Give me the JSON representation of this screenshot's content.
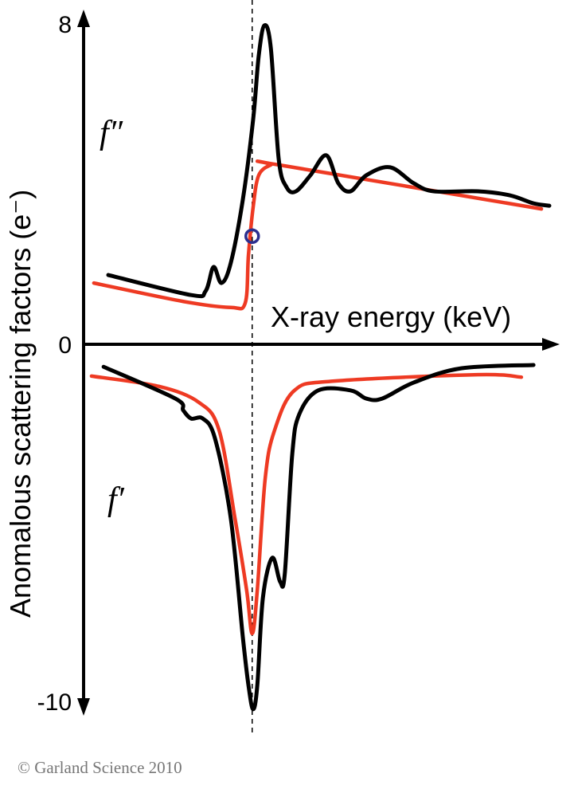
{
  "chart_data": {
    "type": "line",
    "title": "",
    "xlabel": "X-ray energy (keV)",
    "ylabel": "Anomalous scattering factors (e⁻)",
    "y_tick_labels": [
      "8",
      "0",
      "-10"
    ],
    "y_ticks": [
      8,
      0,
      -10
    ],
    "xlim": [
      0,
      100
    ],
    "ylim": [
      -10,
      8
    ],
    "grid": false,
    "absorption_edge_x": 36.2,
    "marker": {
      "x": 36.2,
      "y": 2.7,
      "color": "#2b2f8f"
    },
    "curve_labels": {
      "f_double_prime": "f″",
      "f_prime": "f′"
    },
    "colors": {
      "measured": "#000000",
      "theoretical": "#ee3a23"
    },
    "series": [
      {
        "key": "f2_measured",
        "color": "#000000",
        "points": [
          [
            5.3,
            1.73
          ],
          [
            23.1,
            1.23
          ],
          [
            26.2,
            1.33
          ],
          [
            27.9,
            1.93
          ],
          [
            29.6,
            1.53
          ],
          [
            31.6,
            2.03
          ],
          [
            34.2,
            3.62
          ],
          [
            36.4,
            5.61
          ],
          [
            37.6,
            7.2
          ],
          [
            38.8,
            7.96
          ],
          [
            40.2,
            7.4
          ],
          [
            41.9,
            4.62
          ],
          [
            43.6,
            3.92
          ],
          [
            45.6,
            3.82
          ],
          [
            48.7,
            4.22
          ],
          [
            52.1,
            4.72
          ],
          [
            54.7,
            4.02
          ],
          [
            57.3,
            3.82
          ],
          [
            60.7,
            4.22
          ],
          [
            65.8,
            4.42
          ],
          [
            70.9,
            4.02
          ],
          [
            75.2,
            3.82
          ],
          [
            84.6,
            3.82
          ],
          [
            91.5,
            3.72
          ],
          [
            96.6,
            3.52
          ],
          [
            100,
            3.46
          ]
        ]
      },
      {
        "key": "f2_theoretical",
        "color": "#ee3a23",
        "points": [
          [
            2.2,
            1.53
          ],
          [
            21.4,
            1.07
          ],
          [
            31.6,
            0.92
          ],
          [
            34.7,
            1.03
          ],
          [
            35.4,
            2.23
          ],
          [
            36.4,
            3.42
          ],
          [
            37.6,
            4.22
          ],
          [
            40.2,
            4.48
          ],
          [
            41.9,
            4.48
          ],
          [
            98.3,
            3.38
          ]
        ]
      },
      {
        "key": "f1_measured",
        "color": "#000000",
        "points": [
          [
            4.3,
            -0.63
          ],
          [
            19.7,
            -1.52
          ],
          [
            21.4,
            -1.85
          ],
          [
            23.1,
            -2.08
          ],
          [
            25.6,
            -2.08
          ],
          [
            28.2,
            -2.63
          ],
          [
            31.6,
            -4.87
          ],
          [
            34.2,
            -8.21
          ],
          [
            35.4,
            -9.55
          ],
          [
            36.4,
            -10.22
          ],
          [
            37.3,
            -9.55
          ],
          [
            38.5,
            -7.1
          ],
          [
            40.5,
            -5.98
          ],
          [
            42.2,
            -6.65
          ],
          [
            43.2,
            -6.43
          ],
          [
            44.8,
            -3.08
          ],
          [
            46.3,
            -1.96
          ],
          [
            50.4,
            -1.29
          ],
          [
            57.3,
            -1.29
          ],
          [
            60.7,
            -1.52
          ],
          [
            64.1,
            -1.52
          ],
          [
            70.9,
            -1.07
          ],
          [
            81.2,
            -0.67
          ],
          [
            96.6,
            -0.58
          ]
        ]
      },
      {
        "key": "f1_theoretical",
        "color": "#ee3a23",
        "points": [
          [
            1.7,
            -0.89
          ],
          [
            16.2,
            -1.18
          ],
          [
            24.8,
            -1.63
          ],
          [
            29.1,
            -2.41
          ],
          [
            32.5,
            -4.87
          ],
          [
            35.0,
            -6.88
          ],
          [
            36.2,
            -8.1
          ],
          [
            37.3,
            -6.88
          ],
          [
            39.0,
            -3.75
          ],
          [
            41.0,
            -2.41
          ],
          [
            45.3,
            -1.29
          ],
          [
            53.8,
            -1.03
          ],
          [
            84.6,
            -0.85
          ],
          [
            94.0,
            -0.92
          ]
        ]
      }
    ]
  },
  "copyright": "© Garland Science 2010"
}
